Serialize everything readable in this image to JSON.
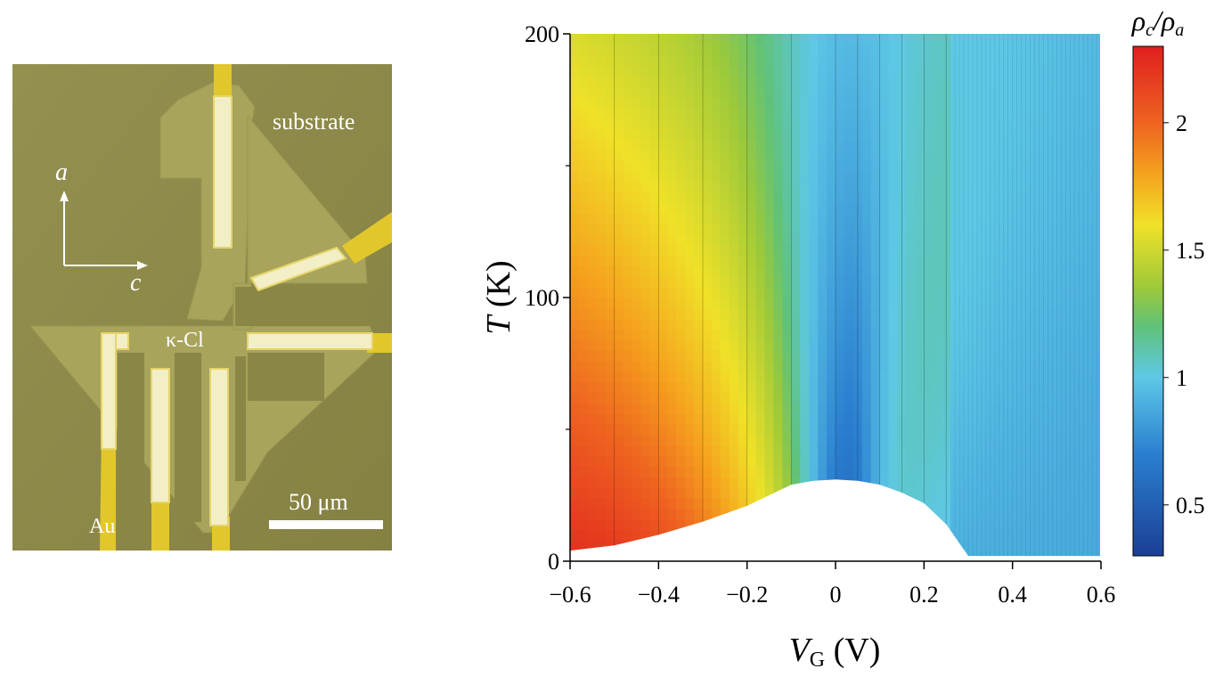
{
  "micrograph": {
    "label_substrate": "substrate",
    "label_sample": "κ-Cl",
    "label_electrode": "Au",
    "axis_a": "a",
    "axis_c": "c",
    "scale_bar": "50 μm",
    "colors": {
      "substrate": "#8e8a4a",
      "crystal": "#a8a45c",
      "gold": "#e0c530",
      "contact": "#f2efc8"
    }
  },
  "chart_data": {
    "type": "heatmap",
    "title": "",
    "xlabel_var": "V",
    "xlabel_sub": "G",
    "xlabel_unit": " (V)",
    "ylabel_var": "T",
    "ylabel_unit": " (K)",
    "xlim": [
      -0.6,
      0.6
    ],
    "ylim": [
      0,
      200
    ],
    "x_ticks": [
      -0.6,
      -0.4,
      -0.2,
      0,
      0.2,
      0.4,
      0.6
    ],
    "x_tick_labels": [
      "−0.6",
      "−0.4",
      "−0.2",
      "0",
      "0.2",
      "0.4",
      "0.6"
    ],
    "y_ticks": [
      0,
      100,
      200
    ],
    "y_tick_labels": [
      "0",
      "100",
      "200"
    ],
    "measured_gate_voltages": [
      -0.5,
      -0.4,
      -0.3,
      -0.2,
      -0.1,
      0,
      0.05,
      0.1,
      0.15,
      0.2,
      0.25
    ],
    "lower_boundary_T": {
      "V": [
        -0.6,
        -0.5,
        -0.4,
        -0.3,
        -0.2,
        -0.15,
        -0.1,
        -0.05,
        0,
        0.05,
        0.1,
        0.15,
        0.2,
        0.25,
        0.3,
        0.6
      ],
      "T": [
        4,
        6,
        10,
        15,
        21,
        25,
        29,
        30.5,
        31,
        30.5,
        29,
        26,
        22,
        14,
        2,
        2
      ]
    },
    "colorbar": {
      "label_num": "ρ",
      "label_num_sub": "c",
      "label_den": "ρ",
      "label_den_sub": "a",
      "range": [
        0.3,
        2.3
      ],
      "ticks": [
        0.5,
        1,
        1.5,
        2
      ],
      "tick_labels": [
        "0.5",
        "1",
        "1.5",
        "2"
      ],
      "stops": [
        {
          "value": 0.3,
          "color": "#1c3f95"
        },
        {
          "value": 0.7,
          "color": "#2a7fd0"
        },
        {
          "value": 1.0,
          "color": "#5ec8e6"
        },
        {
          "value": 1.2,
          "color": "#5fc27a"
        },
        {
          "value": 1.35,
          "color": "#9cc93a"
        },
        {
          "value": 1.6,
          "color": "#f0e128"
        },
        {
          "value": 1.8,
          "color": "#f5a21e"
        },
        {
          "value": 2.0,
          "color": "#ee6320"
        },
        {
          "value": 2.3,
          "color": "#e01f1f"
        }
      ]
    }
  }
}
